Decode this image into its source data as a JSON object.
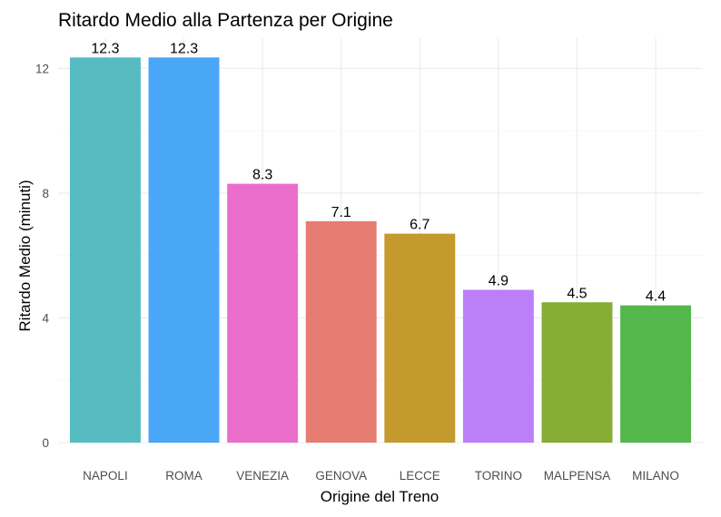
{
  "chart_data": {
    "type": "bar",
    "title": "Ritardo Medio alla Partenza per Origine",
    "xlabel": "Origine del Treno",
    "ylabel": "Ritardo Medio (minuti)",
    "categories": [
      "NAPOLI",
      "ROMA",
      "VENEZIA",
      "GENOVA",
      "LECCE",
      "TORINO",
      "MALPENSA",
      "MILANO"
    ],
    "values": [
      12.35,
      12.35,
      8.3,
      7.1,
      6.7,
      4.9,
      4.5,
      4.4
    ],
    "data_labels": [
      "12.3",
      "12.3",
      "8.3",
      "7.1",
      "6.7",
      "4.9",
      "4.5",
      "4.4"
    ],
    "colors": [
      "#56BCC2",
      "#4AA6F6",
      "#EB6ECC",
      "#E77D72",
      "#C49A2F",
      "#BB80F8",
      "#86AD34",
      "#53B74C"
    ],
    "yticks": [
      0,
      4,
      8,
      12
    ],
    "ylim": [
      0,
      12.97
    ],
    "grid": true,
    "legend": "none"
  }
}
